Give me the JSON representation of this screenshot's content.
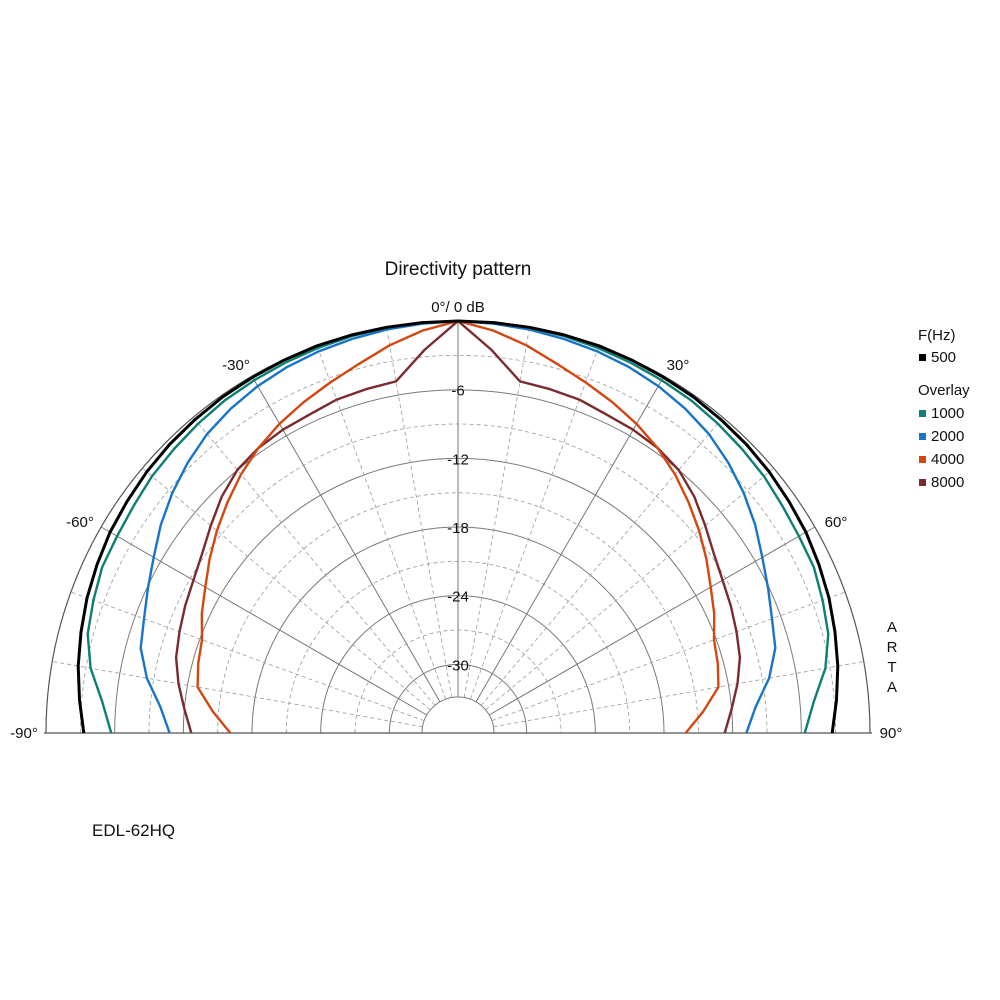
{
  "chart_data": {
    "type": "polar",
    "title": "Directivity pattern",
    "top_label": "0°/ 0 dB",
    "angle_labels": [
      "-90°",
      "-60°",
      "-30°",
      "30°",
      "60°",
      "90°"
    ],
    "db_labels": [
      "-6",
      "-12",
      "-18",
      "-24",
      "-30"
    ],
    "radial_unit": "dB",
    "angle_range": [
      -90,
      90
    ],
    "db_range": [
      -36,
      0
    ],
    "grid": true,
    "legend": {
      "position": "right",
      "header": "F(Hz)",
      "overlay_header": "Overlay"
    },
    "watermark": "ARTA",
    "model_label": "EDL-62HQ",
    "angles": [
      -90,
      -85,
      -80,
      -75,
      -70,
      -65,
      -60,
      -55,
      -50,
      -45,
      -40,
      -35,
      -30,
      -25,
      -20,
      -15,
      -10,
      -5,
      0,
      5,
      10,
      15,
      20,
      25,
      30,
      35,
      40,
      45,
      50,
      55,
      60,
      65,
      70,
      75,
      80,
      85,
      90
    ],
    "series": [
      {
        "name": "500",
        "color": "#000000",
        "group": "main",
        "values": [
          -3.3,
          -2.8,
          -2.3,
          -1.9,
          -1.5,
          -1.2,
          -0.9,
          -0.7,
          -0.5,
          -0.35,
          -0.25,
          -0.15,
          -0.1,
          -0.05,
          0,
          0,
          0,
          0,
          0,
          0,
          0,
          0,
          0,
          -0.05,
          -0.1,
          -0.15,
          -0.25,
          -0.35,
          -0.5,
          -0.7,
          -0.9,
          -1.2,
          -1.5,
          -1.9,
          -2.3,
          -2.8,
          -3.3
        ]
      },
      {
        "name": "1000",
        "color": "#0d7f74",
        "group": "overlay",
        "values": [
          -5.7,
          -4.8,
          -3.4,
          -2.5,
          -2.1,
          -1.7,
          -1.6,
          -1.4,
          -1.1,
          -0.9,
          -0.7,
          -0.5,
          -0.4,
          -0.3,
          -0.2,
          -0.1,
          -0.05,
          0,
          0,
          0,
          -0.05,
          -0.1,
          -0.2,
          -0.3,
          -0.4,
          -0.5,
          -0.7,
          -0.9,
          -1.1,
          -1.4,
          -1.6,
          -1.7,
          -2.1,
          -2.5,
          -3.4,
          -4.8,
          -5.7
        ]
      },
      {
        "name": "2000",
        "color": "#1874c8",
        "group": "overlay",
        "values": [
          -10.8,
          -9.9,
          -8.4,
          -7.3,
          -6.8,
          -6.1,
          -5.3,
          -4.3,
          -3.4,
          -2.6,
          -1.9,
          -1.4,
          -1.0,
          -0.7,
          -0.5,
          -0.35,
          -0.2,
          -0.1,
          0,
          -0.1,
          -0.2,
          -0.35,
          -0.5,
          -0.7,
          -1.0,
          -1.4,
          -1.9,
          -2.6,
          -3.4,
          -4.3,
          -5.3,
          -6.1,
          -6.8,
          -7.3,
          -8.4,
          -9.9,
          -10.8
        ]
      },
      {
        "name": "4000",
        "color": "#d4470f",
        "group": "overlay",
        "values": [
          -16.1,
          -14.5,
          -12.9,
          -12.5,
          -12.2,
          -11.3,
          -10.5,
          -9.5,
          -8.5,
          -7.5,
          -6.5,
          -5.6,
          -4.8,
          -4.1,
          -3.4,
          -2.6,
          -1.6,
          -0.7,
          0,
          -0.7,
          -1.6,
          -2.6,
          -3.4,
          -4.1,
          -4.8,
          -5.6,
          -6.5,
          -7.5,
          -8.5,
          -9.5,
          -10.5,
          -11.3,
          -12.2,
          -12.5,
          -12.9,
          -14.5,
          -16.1
        ]
      },
      {
        "name": "8000",
        "color": "#7b2a2e",
        "group": "overlay",
        "values": [
          -12.7,
          -12.0,
          -11.2,
          -10.5,
          -10.1,
          -9.7,
          -9.3,
          -8.7,
          -7.8,
          -6.8,
          -6.0,
          -5.6,
          -5.4,
          -5.3,
          -5.0,
          -4.9,
          -4.8,
          -2.4,
          0,
          -2.4,
          -4.8,
          -4.9,
          -5.0,
          -5.3,
          -5.4,
          -5.6,
          -6.0,
          -6.8,
          -7.8,
          -8.7,
          -9.3,
          -9.7,
          -10.1,
          -10.5,
          -11.2,
          -12.0,
          -12.7
        ]
      }
    ]
  }
}
